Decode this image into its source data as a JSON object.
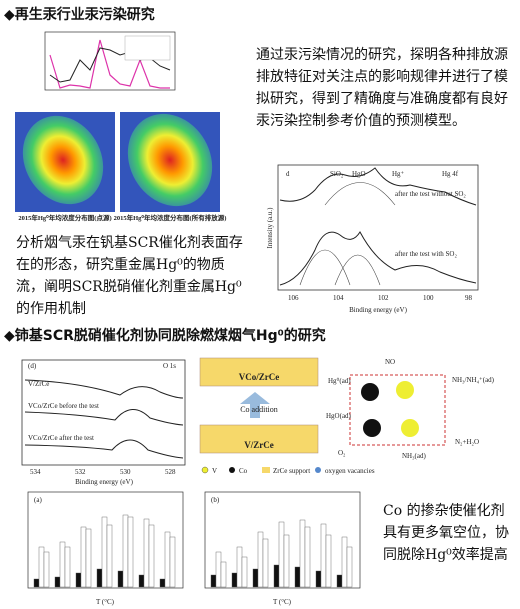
{
  "section1": {
    "heading": "再生汞行业汞污染研究",
    "paragraph1": "通过汞污染情况的研究，探明各种排放源排放特征对关注点的影响规律并进行了模拟研究，得到了精确度与准确度都有良好汞污染控制参考价值的预测模型。",
    "paragraph2": "分析烟气汞在钒基SCR催化剂表面存在的形态，研究重金属Hg⁰的物质流，阐明SCR脱硝催化剂重金属Hg⁰的作用机制",
    "map_captions": [
      "2015年Hg⁰年均浓度分布图(点源)",
      "2015年Hg⁰年均浓度分布图(所有排放源)"
    ],
    "xps": {
      "panel": "d",
      "peaks": [
        "SiO₂",
        "HgO",
        "Hg⁺",
        "Hg 4f"
      ],
      "series": [
        "after the test without SO₂",
        "after the test with SO₂"
      ],
      "x_label": "Binding energy (eV)",
      "y_label": "Intensity (a.u.)",
      "x_ticks": [
        "106",
        "104",
        "102",
        "100",
        "98"
      ]
    }
  },
  "section2": {
    "heading": "铈基SCR脱硝催化剂协同脱除燃煤烟气Hg⁰的研究",
    "paragraph": "Co 的掺杂使催化剂具有更多氧空位，协同脱除Hg⁰效率提高",
    "xps": {
      "panel": "(d)",
      "peak": "O 1s",
      "series": [
        "V/ZrCe",
        "VCo/ZrCe before the test",
        "VCo/ZrCe after the test"
      ],
      "x_label": "Binding energy (eV)",
      "x_ticks": [
        "534",
        "532",
        "530",
        "528"
      ]
    },
    "scheme": {
      "top": "VCo/ZrCe",
      "arrow": "Co addition",
      "bottom": "V/ZrCe",
      "legend": [
        "V",
        "Co",
        "ZrCe support",
        "oxygen vacancies"
      ]
    },
    "mechanism": {
      "labels": [
        "NO",
        "Hg⁰(ad)",
        "HgO(ad)",
        "O₂",
        "NH₃(ad)",
        "N₂+H₂O",
        "NH₃/NH₄⁺(ad)"
      ]
    },
    "bar_panels": [
      "(a)",
      "(b)"
    ],
    "bar_x_label": "T (°C)"
  }
}
